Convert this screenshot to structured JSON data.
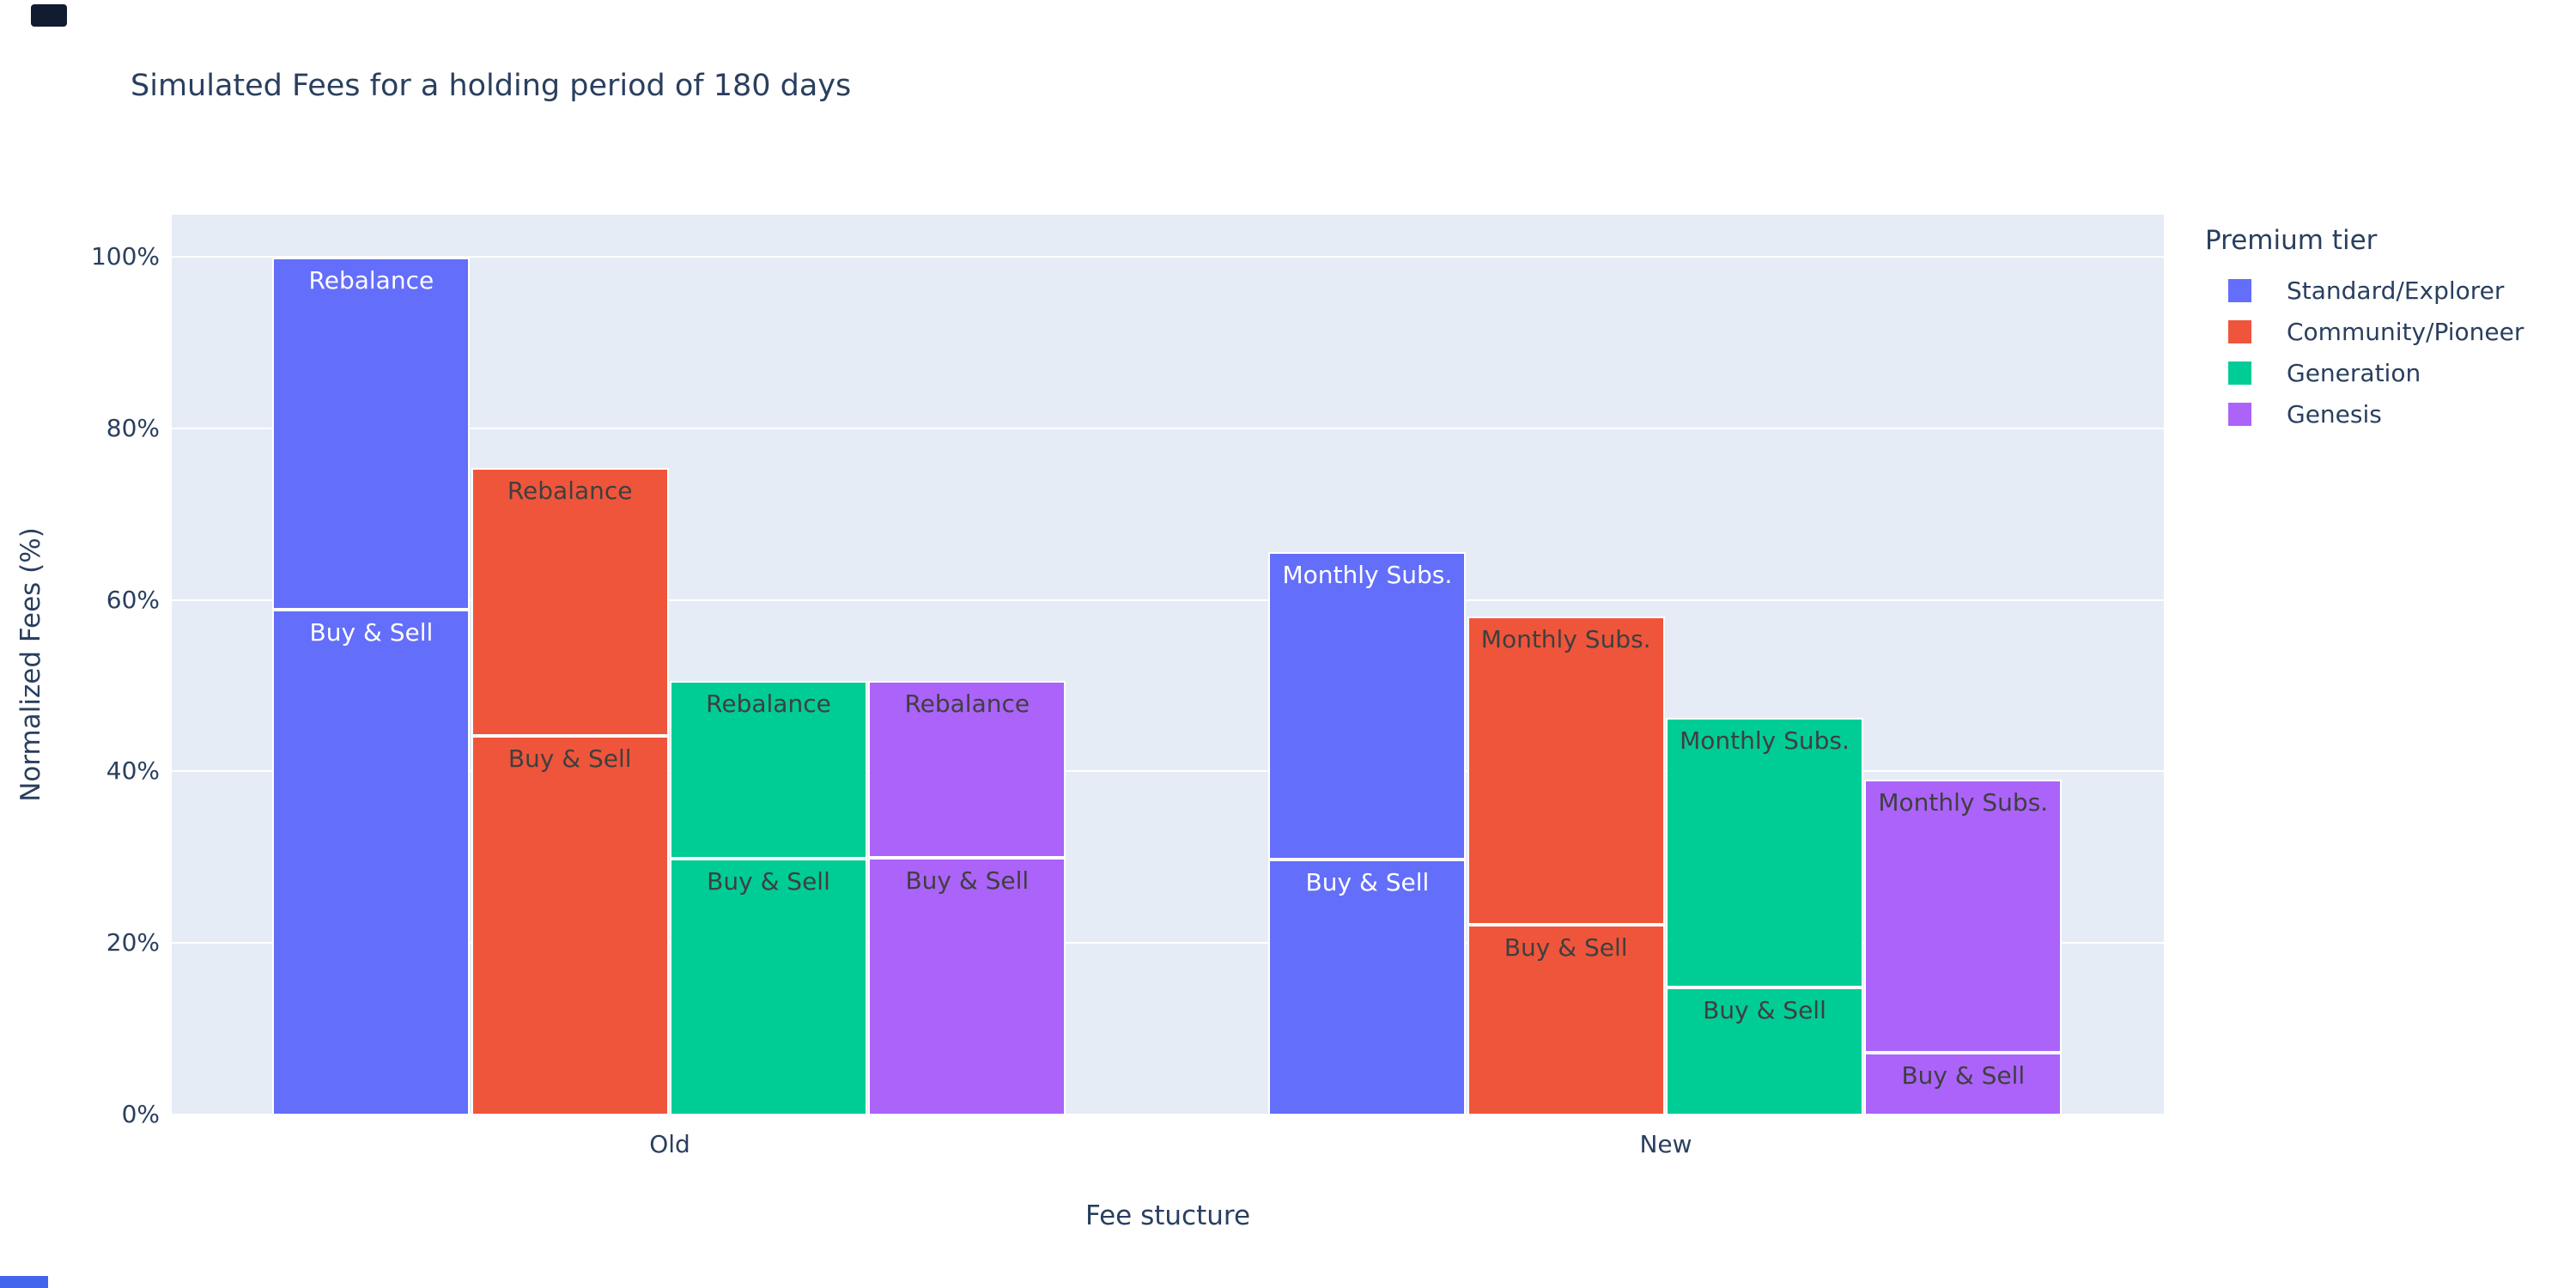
{
  "title": "Simulated Fees for a holding period of 180 days",
  "colors": {
    "plot_background": "#E5ECF6",
    "grid": "#ffffff",
    "text": "#2a3f5f",
    "tier_blue": "#636EFA",
    "tier_red": "#EF553B",
    "tier_green": "#00CC96",
    "tier_purple": "#AB63FA"
  },
  "legend": {
    "title": "Premium tier",
    "items": [
      {
        "label": "Standard/Explorer",
        "color": "#636EFA"
      },
      {
        "label": "Community/Pioneer",
        "color": "#EF553B"
      },
      {
        "label": "Generation",
        "color": "#00CC96"
      },
      {
        "label": "Genesis",
        "color": "#AB63FA"
      }
    ]
  },
  "chart_data": {
    "type": "bar",
    "mode": "grouped-stacked",
    "title": "Simulated Fees for a holding period of 180 days",
    "xlabel": "Fee stucture",
    "ylabel": "Normalized Fees (%)",
    "categories": [
      "Old",
      "New"
    ],
    "category_centers": [
      0.25,
      0.75
    ],
    "ylim": [
      0,
      105
    ],
    "yticks": [
      0,
      20,
      40,
      60,
      80,
      100
    ],
    "ytick_labels": [
      "0%",
      "20%",
      "40%",
      "60%",
      "80%",
      "100%"
    ],
    "grid": true,
    "legend_position": "right",
    "legend_title": "Premium tier",
    "tiers": [
      {
        "name": "Standard/Explorer",
        "color": "#636EFA",
        "label_color": "#ffffff",
        "bars": [
          {
            "category": "Old",
            "segments": [
              {
                "label": "Buy & Sell",
                "value": 59.0
              },
              {
                "label": "Rebalance",
                "value": 41.0
              }
            ]
          },
          {
            "category": "New",
            "segments": [
              {
                "label": "Buy & Sell",
                "value": 29.8
              },
              {
                "label": "Monthly Subs.",
                "value": 35.9
              }
            ]
          }
        ]
      },
      {
        "name": "Community/Pioneer",
        "color": "#EF553B",
        "label_color": "#3f3f3f",
        "bars": [
          {
            "category": "Old",
            "segments": [
              {
                "label": "Buy & Sell",
                "value": 44.2
              },
              {
                "label": "Rebalance",
                "value": 31.3
              }
            ]
          },
          {
            "category": "New",
            "segments": [
              {
                "label": "Buy & Sell",
                "value": 22.2
              },
              {
                "label": "Monthly Subs.",
                "value": 36.0
              }
            ]
          }
        ]
      },
      {
        "name": "Generation",
        "color": "#00CC96",
        "label_color": "#3f3f3f",
        "bars": [
          {
            "category": "Old",
            "segments": [
              {
                "label": "Buy & Sell",
                "value": 29.9
              },
              {
                "label": "Rebalance",
                "value": 20.7
              }
            ]
          },
          {
            "category": "New",
            "segments": [
              {
                "label": "Buy & Sell",
                "value": 14.9
              },
              {
                "label": "Monthly Subs.",
                "value": 31.4
              }
            ]
          }
        ]
      },
      {
        "name": "Genesis",
        "color": "#AB63FA",
        "label_color": "#3f3f3f",
        "bars": [
          {
            "category": "Old",
            "segments": [
              {
                "label": "Buy & Sell",
                "value": 30.0
              },
              {
                "label": "Rebalance",
                "value": 20.6
              }
            ]
          },
          {
            "category": "New",
            "segments": [
              {
                "label": "Buy & Sell",
                "value": 7.3
              },
              {
                "label": "Monthly Subs.",
                "value": 31.8
              }
            ]
          }
        ]
      }
    ]
  }
}
